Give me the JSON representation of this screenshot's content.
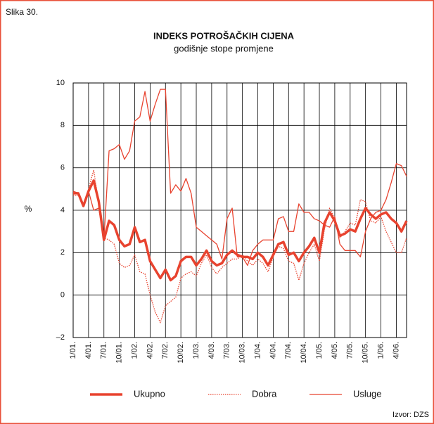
{
  "chart_data": {
    "type": "line",
    "figure_label": "Slika 30.",
    "title": "INDEKS POTROŠAČKIH CIJENA",
    "subtitle": "godišnje stope promjene",
    "ylabel": "%",
    "source": "Izvor: DZS",
    "categories": [
      "1/01.",
      null,
      null,
      "4/01.",
      null,
      null,
      "7/01.",
      null,
      null,
      "10/01.",
      null,
      null,
      "1/02.",
      null,
      null,
      "4/02.",
      null,
      null,
      "7/02.",
      null,
      null,
      "10/02.",
      null,
      null,
      "1/03.",
      null,
      null,
      "4/03.",
      null,
      null,
      "7/03.",
      null,
      null,
      "10/03.",
      null,
      null,
      "1/04.",
      null,
      null,
      "4/04.",
      null,
      null,
      "7/04.",
      null,
      null,
      "10/04.",
      null,
      null,
      "1/05.",
      null,
      null,
      "4/05.",
      null,
      null,
      "7/05.",
      null,
      null,
      "10/05.",
      null,
      null,
      "1/06.",
      null,
      null,
      "4/06.",
      null,
      null
    ],
    "series": [
      {
        "name": "Ukupno",
        "color": "#e8432f",
        "line_style": "thick",
        "values": [
          4.8,
          4.8,
          4.2,
          4.9,
          5.4,
          4.4,
          2.6,
          3.5,
          3.3,
          2.6,
          2.3,
          2.4,
          3.2,
          2.5,
          2.6,
          1.6,
          1.2,
          0.8,
          1.2,
          0.7,
          0.9,
          1.6,
          1.8,
          1.8,
          1.4,
          1.7,
          2.1,
          1.6,
          1.4,
          1.5,
          1.9,
          2.1,
          1.9,
          1.8,
          1.8,
          1.7,
          2.0,
          1.8,
          1.4,
          1.9,
          2.4,
          2.5,
          1.9,
          2.0,
          1.6,
          2.0,
          2.3,
          2.7,
          2.0,
          3.4,
          3.9,
          3.5,
          2.8,
          2.9,
          3.1,
          3.0,
          3.6,
          4.1,
          3.8,
          3.6,
          3.8,
          3.9,
          3.6,
          3.4,
          3.0,
          3.5
        ]
      },
      {
        "name": "Dobra",
        "color": "#e8432f",
        "line_style": "dotted",
        "values": [
          4.7,
          4.7,
          4.3,
          5.0,
          5.9,
          4.3,
          2.7,
          2.6,
          2.4,
          1.5,
          1.3,
          1.4,
          1.9,
          1.1,
          1.0,
          0.0,
          -0.8,
          -1.3,
          -0.5,
          -0.3,
          -0.1,
          0.8,
          1.0,
          1.1,
          0.9,
          1.5,
          1.9,
          1.3,
          1.0,
          1.3,
          1.5,
          1.7,
          1.7,
          1.9,
          1.6,
          1.4,
          1.7,
          1.5,
          1.1,
          1.8,
          2.3,
          2.2,
          1.6,
          1.5,
          0.7,
          1.5,
          2.0,
          2.4,
          1.6,
          3.1,
          4.1,
          3.6,
          2.7,
          3.0,
          3.4,
          3.3,
          4.5,
          4.4,
          3.5,
          3.4,
          3.7,
          3.0,
          2.5,
          2.0,
          2.0,
          2.7
        ]
      },
      {
        "name": "Usluge",
        "color": "#e8432f",
        "line_style": "thin",
        "values": [
          4.9,
          4.8,
          4.2,
          4.9,
          4.0,
          4.1,
          2.6,
          6.8,
          6.9,
          7.1,
          6.4,
          6.8,
          8.2,
          8.4,
          9.6,
          8.2,
          9.0,
          9.7,
          9.7,
          4.8,
          5.2,
          4.9,
          5.5,
          4.8,
          3.2,
          3.0,
          2.8,
          2.6,
          2.4,
          1.7,
          3.6,
          4.1,
          1.8,
          1.8,
          1.4,
          2.1,
          2.4,
          2.6,
          2.6,
          2.6,
          3.6,
          3.7,
          3.0,
          3.0,
          4.3,
          3.9,
          3.9,
          3.6,
          3.5,
          3.3,
          3.2,
          3.7,
          2.4,
          2.1,
          2.1,
          2.1,
          1.8,
          3.0,
          3.6,
          3.9,
          4.0,
          4.5,
          5.3,
          6.2,
          6.1,
          5.6
        ]
      }
    ],
    "ylim": [
      -2,
      10
    ],
    "yticks": [
      {
        "value": -2,
        "label": "–2"
      },
      0,
      2,
      4,
      6,
      8,
      10
    ],
    "grid": true,
    "legend": "bottom"
  }
}
